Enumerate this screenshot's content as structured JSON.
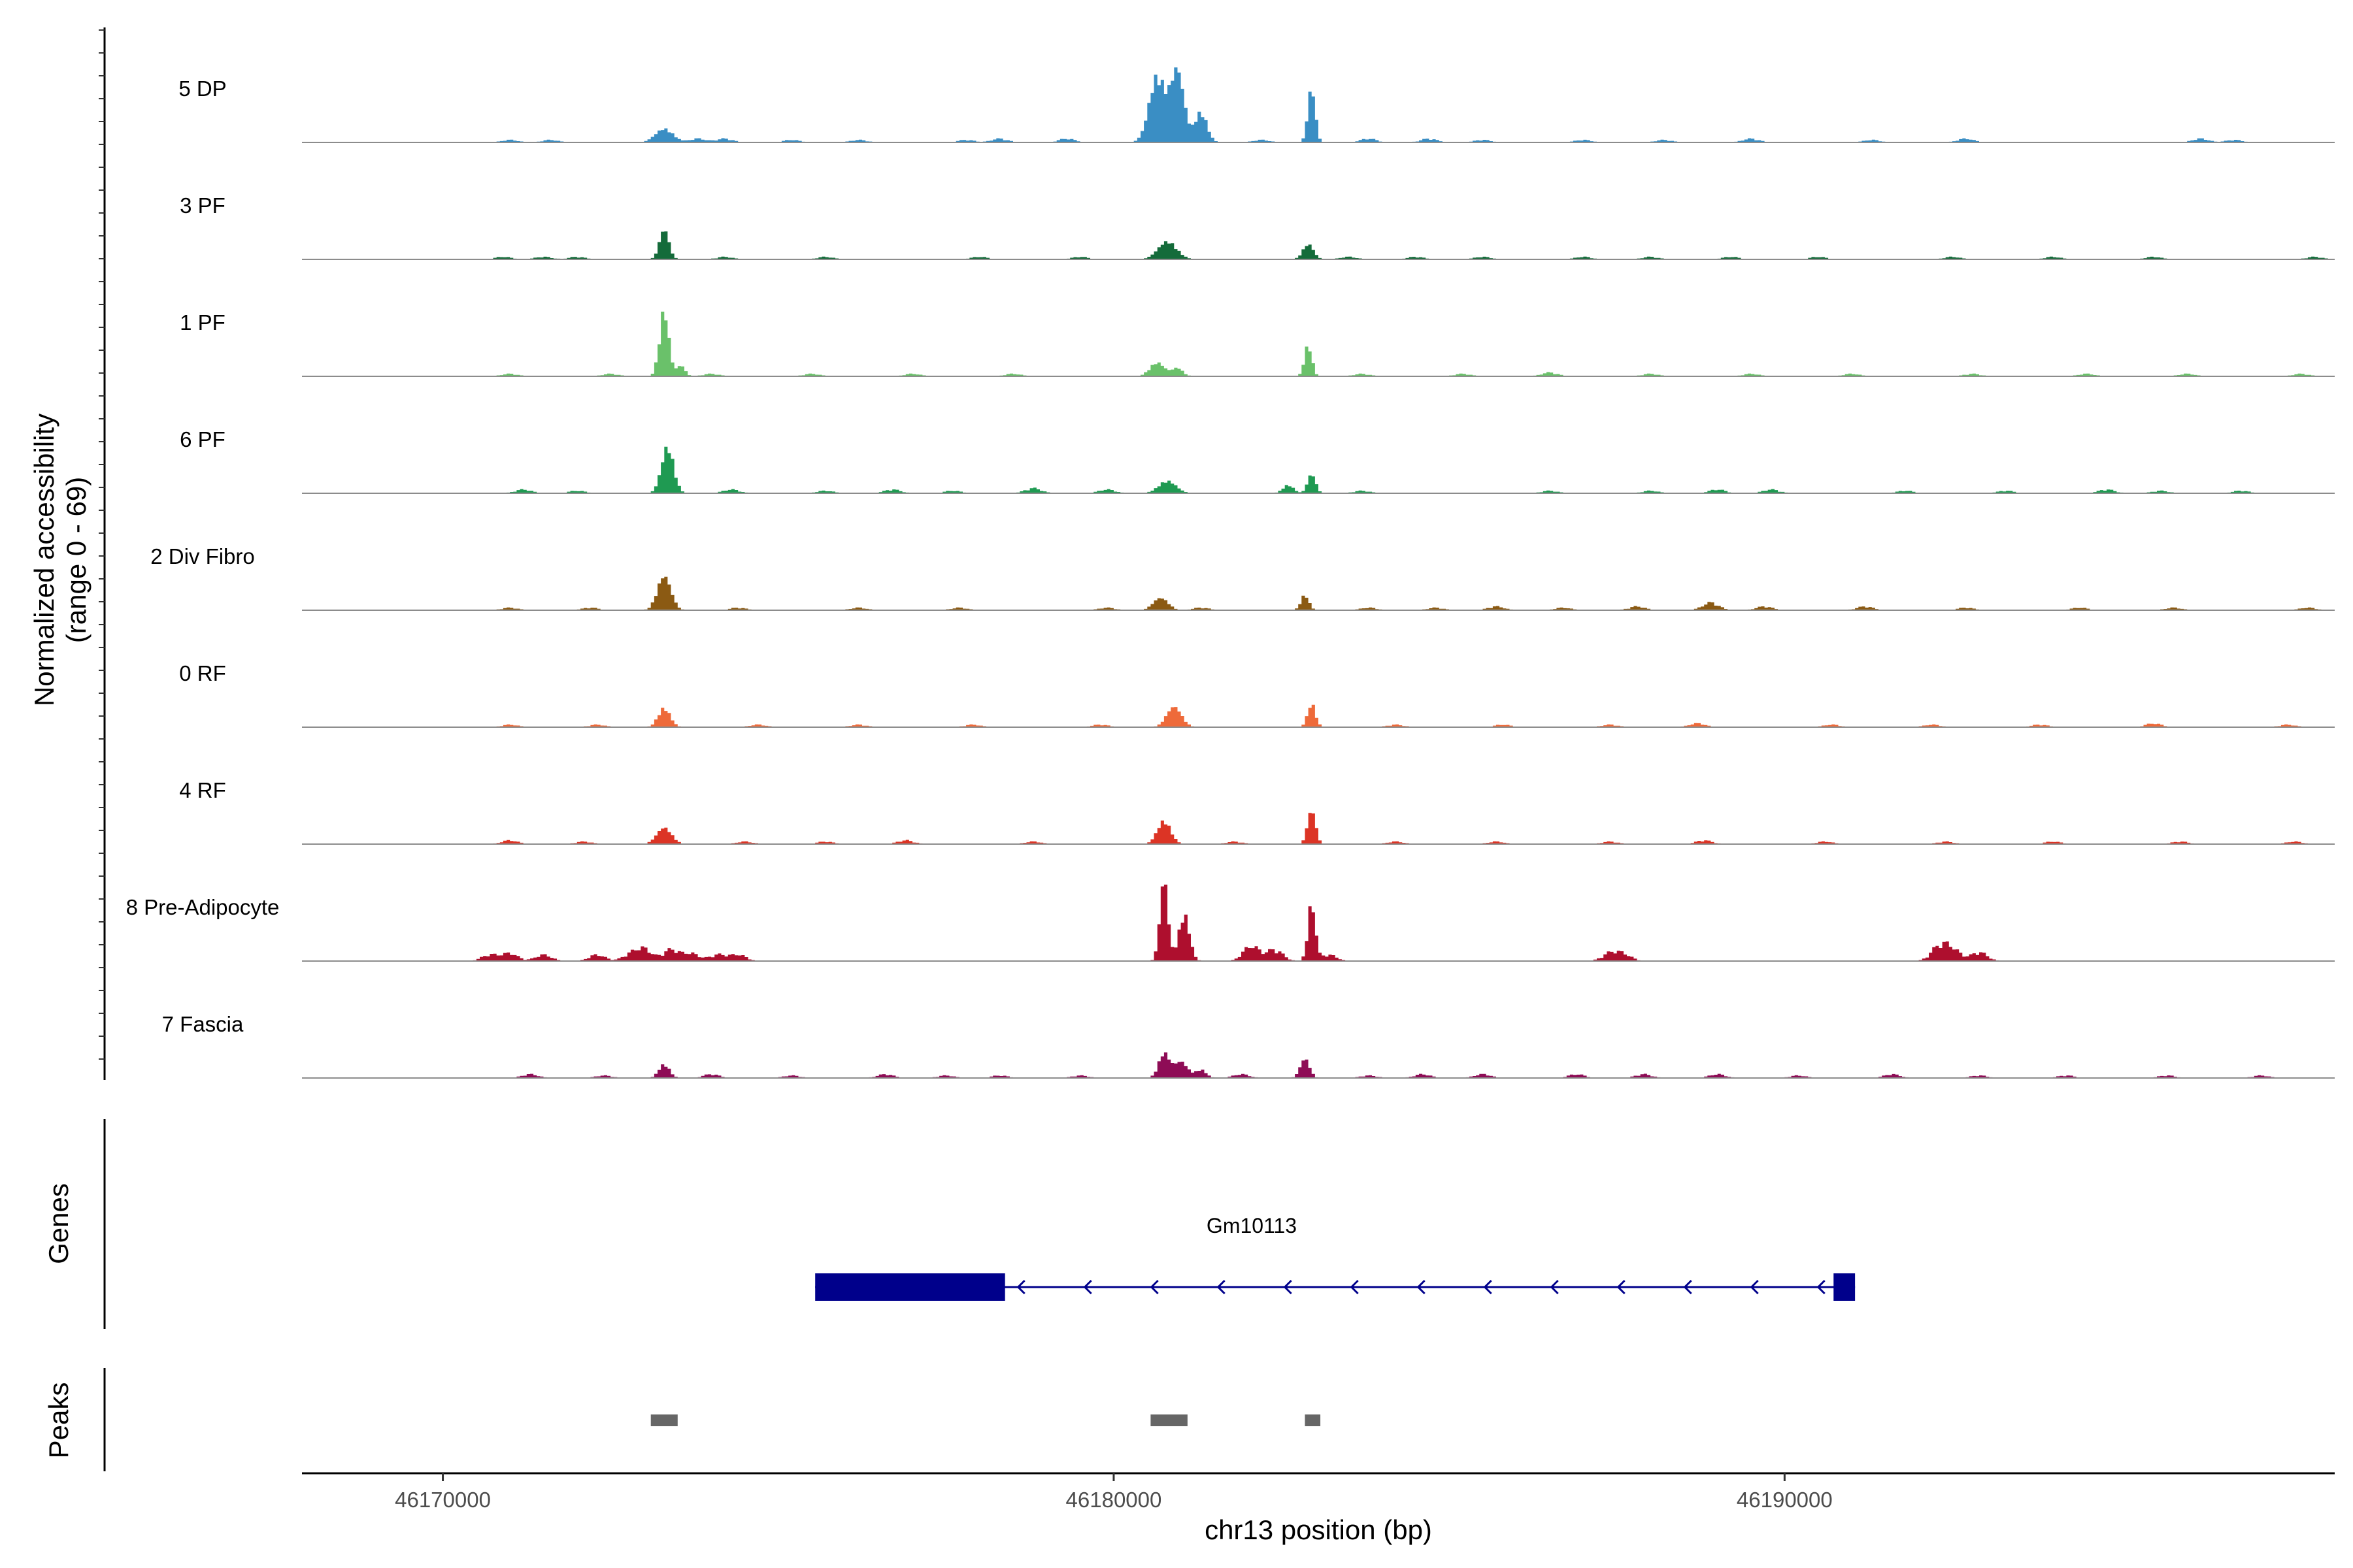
{
  "chart_data": {
    "type": "area",
    "title": "",
    "ylabel_line1": "Normalized accessibility",
    "ylabel_line2": "(range 0 - 69)",
    "y_range": [
      0,
      69
    ],
    "xlabel": "chr13 position (bp)",
    "xlim": [
      46167900,
      46198200
    ],
    "x_ticks": [
      46170000,
      46180000,
      46190000
    ],
    "x_tick_labels": [
      "46170000",
      "46180000",
      "46190000"
    ],
    "tracks": [
      {
        "name": "5 DP",
        "color": "#3a8ec4",
        "peaks": [
          [
            46173300,
            10,
            130
          ],
          [
            46180650,
            48,
            120
          ],
          [
            46180950,
            52,
            100
          ],
          [
            46181300,
            22,
            90
          ],
          [
            46182950,
            40,
            55
          ]
        ],
        "noise": [
          [
            46171000,
            2
          ],
          [
            46171600,
            2
          ],
          [
            46173800,
            3
          ],
          [
            46174200,
            3
          ],
          [
            46175200,
            2
          ],
          [
            46176200,
            2
          ],
          [
            46177800,
            2
          ],
          [
            46178300,
            3
          ],
          [
            46179300,
            3
          ],
          [
            46182200,
            2
          ],
          [
            46183800,
            3
          ],
          [
            46184700,
            3
          ],
          [
            46185500,
            2
          ],
          [
            46187000,
            2
          ],
          [
            46188200,
            2
          ],
          [
            46189500,
            3
          ],
          [
            46191300,
            2
          ],
          [
            46192700,
            3
          ],
          [
            46196200,
            3
          ],
          [
            46196700,
            2
          ]
        ]
      },
      {
        "name": "3 PF",
        "color": "#146b3a",
        "peaks": [
          [
            46173300,
            22,
            70
          ],
          [
            46180800,
            13,
            140
          ],
          [
            46182900,
            11,
            80
          ]
        ],
        "noise": [
          [
            46170900,
            2
          ],
          [
            46171500,
            2
          ],
          [
            46172000,
            2
          ],
          [
            46174200,
            2
          ],
          [
            46175700,
            2
          ],
          [
            46178000,
            2
          ],
          [
            46179500,
            2
          ],
          [
            46183500,
            2
          ],
          [
            46184500,
            2
          ],
          [
            46185500,
            2
          ],
          [
            46187000,
            2
          ],
          [
            46188000,
            2
          ],
          [
            46189200,
            2
          ],
          [
            46190500,
            2
          ],
          [
            46192500,
            2
          ],
          [
            46194000,
            2
          ],
          [
            46195500,
            2
          ],
          [
            46197900,
            2
          ]
        ]
      },
      {
        "name": "1 PF",
        "color": "#6ac16a",
        "peaks": [
          [
            46173300,
            48,
            70
          ],
          [
            46173550,
            8,
            60
          ],
          [
            46180650,
            10,
            110
          ],
          [
            46180950,
            6,
            80
          ],
          [
            46182900,
            23,
            55
          ]
        ],
        "noise": [
          [
            46171000,
            2
          ],
          [
            46172500,
            2
          ],
          [
            46174000,
            2
          ],
          [
            46175500,
            2
          ],
          [
            46177000,
            2
          ],
          [
            46178500,
            2
          ],
          [
            46183700,
            2
          ],
          [
            46185200,
            2
          ],
          [
            46186500,
            3
          ],
          [
            46188000,
            2
          ],
          [
            46189500,
            2
          ],
          [
            46191000,
            2
          ],
          [
            46192800,
            2
          ],
          [
            46194500,
            2
          ],
          [
            46196000,
            2
          ],
          [
            46197700,
            2
          ]
        ]
      },
      {
        "name": "6 PF",
        "color": "#1f9a52",
        "peaks": [
          [
            46173350,
            34,
            90
          ],
          [
            46180800,
            9,
            130
          ],
          [
            46182950,
            14,
            60
          ],
          [
            46182600,
            6,
            80
          ]
        ],
        "noise": [
          [
            46171200,
            3
          ],
          [
            46172000,
            2
          ],
          [
            46174300,
            3
          ],
          [
            46175700,
            2
          ],
          [
            46176700,
            3
          ],
          [
            46177600,
            2
          ],
          [
            46178800,
            4
          ],
          [
            46179900,
            3
          ],
          [
            46183700,
            2
          ],
          [
            46186500,
            2
          ],
          [
            46188000,
            2
          ],
          [
            46189000,
            3
          ],
          [
            46189800,
            3
          ],
          [
            46191800,
            2
          ],
          [
            46193300,
            2
          ],
          [
            46194800,
            3
          ],
          [
            46195600,
            2
          ],
          [
            46196800,
            2
          ]
        ]
      },
      {
        "name": "2 Div Fibro",
        "color": "#8b5a13",
        "peaks": [
          [
            46173300,
            25,
            100
          ],
          [
            46180700,
            9,
            110
          ],
          [
            46182850,
            11,
            60
          ]
        ],
        "noise": [
          [
            46171000,
            2
          ],
          [
            46172200,
            2
          ],
          [
            46174400,
            2
          ],
          [
            46176200,
            2
          ],
          [
            46177700,
            2
          ],
          [
            46179900,
            2
          ],
          [
            46181300,
            2
          ],
          [
            46183800,
            2
          ],
          [
            46184800,
            2
          ],
          [
            46185700,
            3
          ],
          [
            46186700,
            2
          ],
          [
            46187800,
            3
          ],
          [
            46188900,
            6
          ],
          [
            46189700,
            3
          ],
          [
            46191200,
            3
          ],
          [
            46192700,
            2
          ],
          [
            46194400,
            2
          ],
          [
            46195800,
            2
          ],
          [
            46197800,
            2
          ]
        ]
      },
      {
        "name": "0 RF",
        "color": "#ee6a3a",
        "peaks": [
          [
            46173300,
            14,
            90
          ],
          [
            46180900,
            15,
            110
          ],
          [
            46182950,
            17,
            60
          ]
        ],
        "noise": [
          [
            46171000,
            2
          ],
          [
            46172300,
            2
          ],
          [
            46174700,
            2
          ],
          [
            46176200,
            2
          ],
          [
            46177900,
            2
          ],
          [
            46179800,
            2
          ],
          [
            46184200,
            2
          ],
          [
            46185800,
            2
          ],
          [
            46187400,
            2
          ],
          [
            46188700,
            3
          ],
          [
            46190700,
            2
          ],
          [
            46192200,
            2
          ],
          [
            46193800,
            2
          ],
          [
            46195500,
            3
          ],
          [
            46197500,
            2
          ]
        ]
      },
      {
        "name": "4 RF",
        "color": "#dc3425",
        "peaks": [
          [
            46173300,
            12,
            110
          ],
          [
            46180750,
            17,
            100
          ],
          [
            46182950,
            25,
            60
          ]
        ],
        "noise": [
          [
            46171000,
            3
          ],
          [
            46172100,
            2
          ],
          [
            46174500,
            2
          ],
          [
            46175700,
            2
          ],
          [
            46176900,
            3
          ],
          [
            46178800,
            2
          ],
          [
            46181800,
            2
          ],
          [
            46184200,
            2
          ],
          [
            46185700,
            2
          ],
          [
            46187400,
            2
          ],
          [
            46188800,
            3
          ],
          [
            46190600,
            2
          ],
          [
            46192400,
            2
          ],
          [
            46194000,
            2
          ],
          [
            46195900,
            2
          ],
          [
            46197600,
            2
          ]
        ]
      },
      {
        "name": "8 Pre-Adipocyte",
        "color": "#ae0f2e",
        "peaks": [
          [
            46180750,
            60,
            60
          ],
          [
            46181050,
            34,
            80
          ],
          [
            46182950,
            42,
            55
          ]
        ],
        "noise": [
          [
            46170700,
            5
          ],
          [
            46171000,
            6
          ],
          [
            46171500,
            5
          ],
          [
            46172300,
            5
          ],
          [
            46172800,
            5
          ],
          [
            46173000,
            9
          ],
          [
            46173400,
            9
          ],
          [
            46173700,
            6
          ],
          [
            46174100,
            5
          ],
          [
            46174400,
            5
          ],
          [
            46182050,
            12
          ],
          [
            46182400,
            9
          ],
          [
            46183200,
            5
          ],
          [
            46187400,
            6
          ],
          [
            46187600,
            5
          ],
          [
            46192300,
            11
          ],
          [
            46192500,
            9
          ],
          [
            46192900,
            7
          ]
        ]
      },
      {
        "name": "7 Fascia",
        "color": "#8e0c56",
        "peaks": [
          [
            46173300,
            10,
            80
          ],
          [
            46180750,
            18,
            80
          ],
          [
            46181000,
            12,
            100
          ],
          [
            46181300,
            6,
            80
          ],
          [
            46182850,
            14,
            70
          ]
        ],
        "noise": [
          [
            46171300,
            3
          ],
          [
            46172400,
            2
          ],
          [
            46174000,
            3
          ],
          [
            46175200,
            2
          ],
          [
            46176600,
            3
          ],
          [
            46177500,
            2
          ],
          [
            46178300,
            2
          ],
          [
            46179500,
            2
          ],
          [
            46181900,
            3
          ],
          [
            46183800,
            2
          ],
          [
            46184600,
            3
          ],
          [
            46185500,
            3
          ],
          [
            46186900,
            3
          ],
          [
            46187900,
            3
          ],
          [
            46189000,
            3
          ],
          [
            46190200,
            2
          ],
          [
            46191600,
            3
          ],
          [
            46192900,
            2
          ],
          [
            46194200,
            2
          ],
          [
            46195700,
            2
          ],
          [
            46197100,
            2
          ]
        ]
      }
    ],
    "genes_label": "Genes",
    "gene": {
      "name": "Gm10113",
      "strand": "-",
      "start": 46175550,
      "end": 46191050,
      "exons": [
        [
          46175550,
          46178380
        ],
        [
          46190730,
          46191050
        ]
      ],
      "color": "#00008b"
    },
    "peaks_label": "Peaks",
    "peak_regions": [
      [
        46173100,
        46173500
      ],
      [
        46180550,
        46181100
      ],
      [
        46182850,
        46183080
      ]
    ],
    "peak_color": "#666666"
  }
}
